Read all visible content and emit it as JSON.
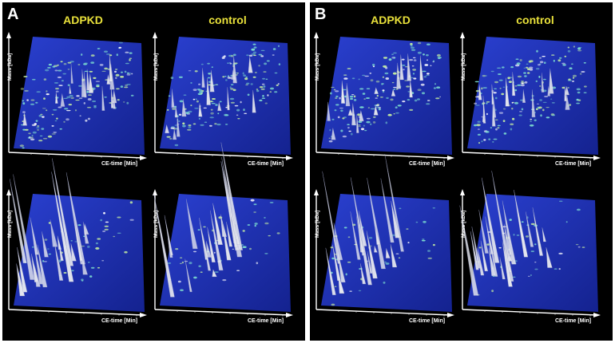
{
  "figure": {
    "panels": [
      {
        "letter": "A",
        "columns": [
          "ADPKD",
          "control"
        ]
      },
      {
        "letter": "B",
        "columns": [
          "ADPKD",
          "control"
        ]
      }
    ],
    "axis": {
      "y_label": "Mass [kDa]",
      "x_label": "CE-time [Min]"
    },
    "colors": {
      "background": "#000000",
      "plane": "#1a2fb0",
      "title": "#e8e03a",
      "peak": "#e6e8f0"
    }
  }
}
